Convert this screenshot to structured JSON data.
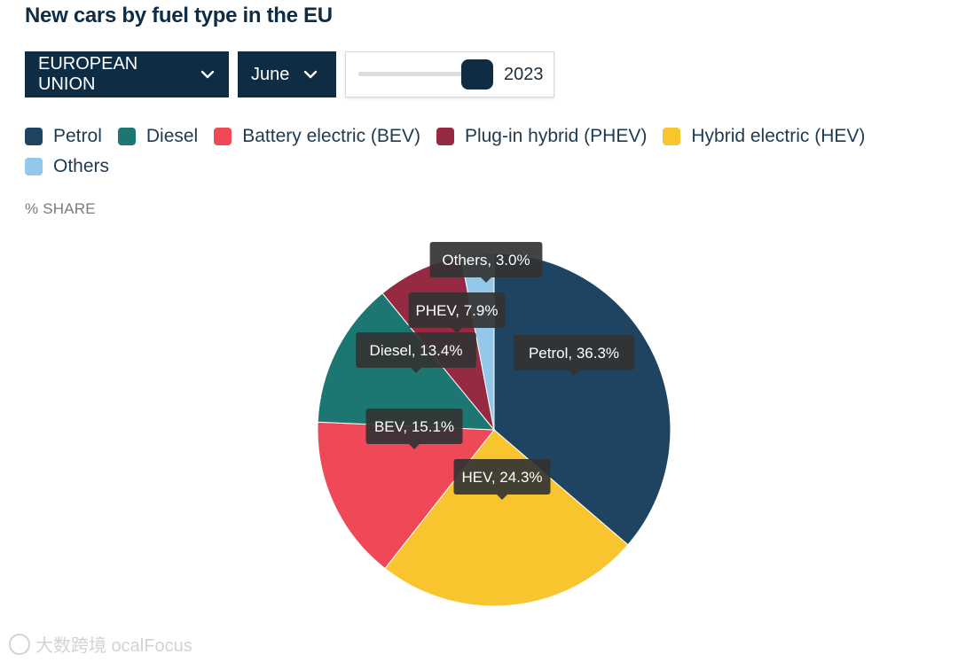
{
  "title": "New cars by fuel type in the EU",
  "controls": {
    "region": "EUROPEAN UNION",
    "month": "June",
    "year": "2023"
  },
  "colors": {
    "dark_navy": "#0f2c45",
    "petrol": "#1f4461",
    "diesel": "#1c7773",
    "bev": "#ef4957",
    "phev": "#962a42",
    "hev": "#f8c52f",
    "others": "#94c8ea",
    "tooltip_bg": "#333333"
  },
  "unit_label": "% SHARE",
  "watermark": "大数跨境 ocalFocus",
  "chart_data": {
    "type": "pie",
    "title": "New cars by fuel type in the EU",
    "legend_position": "top-left",
    "slices": [
      {
        "key": "petrol",
        "legend": "Petrol",
        "short": "Petrol",
        "value": 36.3,
        "color": "#1f4461",
        "label": "Petrol, 36.3%"
      },
      {
        "key": "hev",
        "legend": "Hybrid electric (HEV)",
        "short": "HEV",
        "value": 24.3,
        "color": "#f8c52f",
        "label": "HEV, 24.3%"
      },
      {
        "key": "bev",
        "legend": "Battery electric (BEV)",
        "short": "BEV",
        "value": 15.1,
        "color": "#ef4957",
        "label": "BEV, 15.1%"
      },
      {
        "key": "diesel",
        "legend": "Diesel",
        "short": "Diesel",
        "value": 13.4,
        "color": "#1c7773",
        "label": "Diesel, 13.4%"
      },
      {
        "key": "phev",
        "legend": "Plug-in hybrid (PHEV)",
        "short": "PHEV",
        "value": 7.9,
        "color": "#962a42",
        "label": "PHEV, 7.9%"
      },
      {
        "key": "others",
        "legend": "Others",
        "short": "Others",
        "value": 3.0,
        "color": "#94c8ea",
        "label": "Others, 3.0%"
      }
    ],
    "legend_order": [
      "petrol",
      "diesel",
      "bev",
      "phev",
      "hev",
      "others"
    ]
  }
}
